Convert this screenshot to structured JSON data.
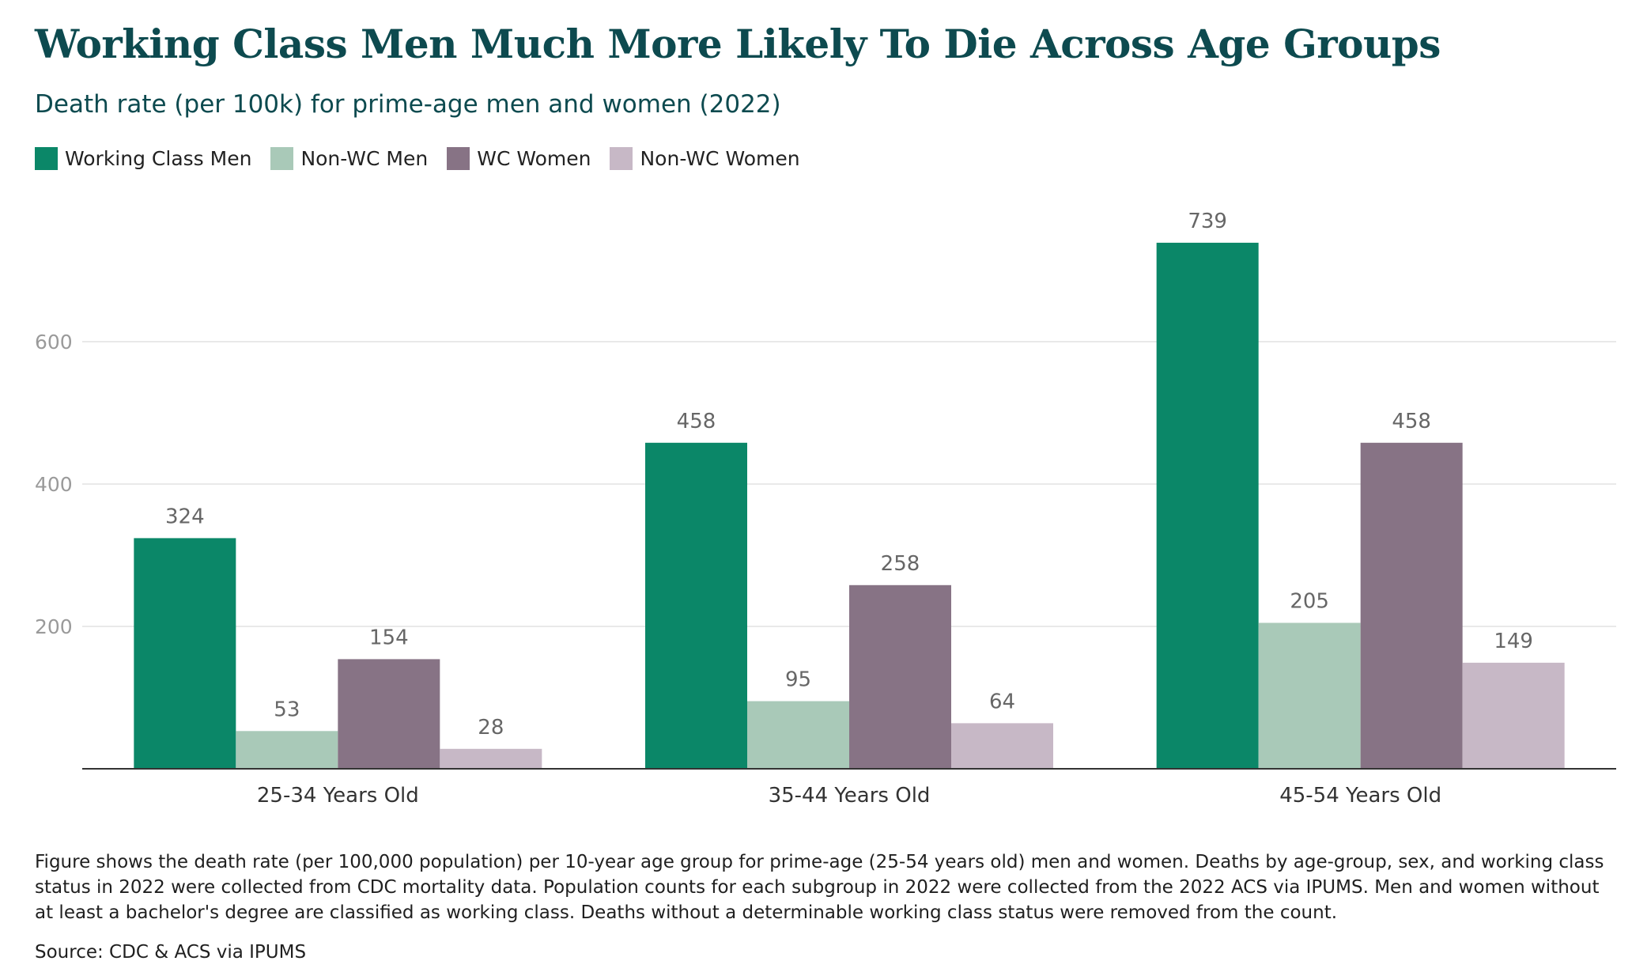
{
  "title": "Working Class Men Much More Likely To Die Across Age Groups",
  "subtitle": "Death rate (per 100k) for prime-age men and women (2022)",
  "footnote": "Figure shows the death rate (per 100,000 population) per 10-year age group for prime-age (25-54 years old) men and women. Deaths by age-group, sex, and working class status in 2022 were collected from CDC mortality data. Population counts for each subgroup in 2022 were collected from the 2022 ACS via IPUMS. Men and women without at least a bachelor's degree are classified as working class. Deaths without a determinable working class status were removed from the count.",
  "source": "Source: CDC & ACS via IPUMS",
  "chart_data": {
    "type": "bar",
    "title": "Working Class Men Much More Likely To Die Across Age Groups",
    "subtitle": "Death rate (per 100k) for prime-age men and women (2022)",
    "xlabel": "",
    "ylabel": "",
    "categories": [
      "25-34 Years Old",
      "35-44 Years Old",
      "45-54 Years Old"
    ],
    "series": [
      {
        "name": "Working Class Men",
        "color": "#0b8768",
        "values": [
          324,
          458,
          739
        ]
      },
      {
        "name": "Non-WC Men",
        "color": "#a9c9b8",
        "values": [
          53,
          95,
          205
        ]
      },
      {
        "name": "WC Women",
        "color": "#877385",
        "values": [
          154,
          258,
          458
        ]
      },
      {
        "name": "Non-WC Women",
        "color": "#c7b8c6",
        "values": [
          28,
          64,
          149
        ]
      }
    ],
    "ylim": [
      0,
      800
    ],
    "yticks": [
      200,
      400,
      600
    ],
    "grid": true,
    "legend_position": "top-left",
    "data_labels": true
  }
}
